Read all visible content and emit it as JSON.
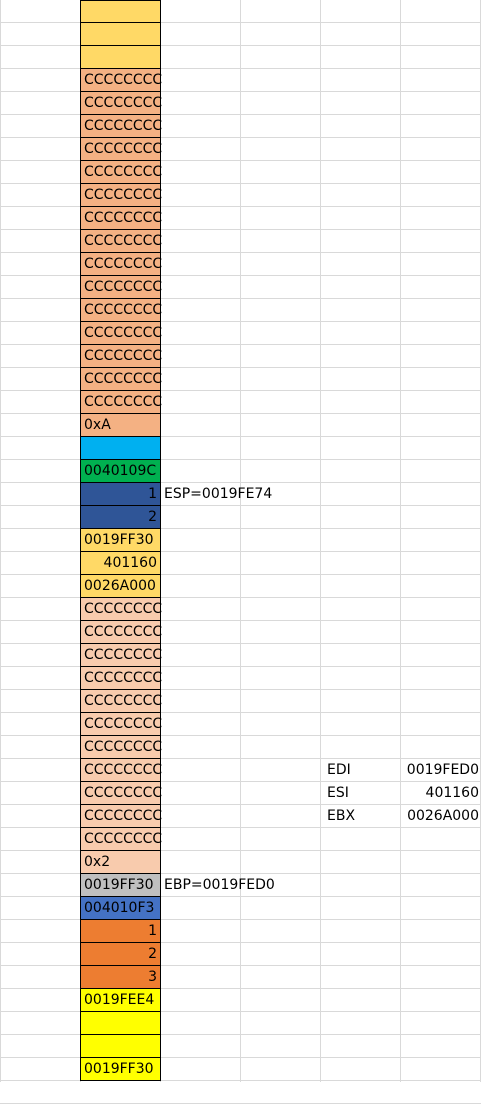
{
  "colors": {
    "gridline": "#d9d9d9",
    "light_yellow": "#ffd966",
    "salmon": "#f4b183",
    "light_peach": "#f8cbad",
    "sky_blue": "#00b0f0",
    "green": "#00b050",
    "navy_blue": "#2f5597",
    "mid_blue": "#4472c4",
    "orange": "#ed7d31",
    "gray": "#bfbfbf",
    "yellow": "#ffff00"
  },
  "stack_cells": [
    {
      "text": "",
      "color": "light_yellow",
      "align": "left"
    },
    {
      "text": "",
      "color": "light_yellow",
      "align": "left"
    },
    {
      "text": "",
      "color": "light_yellow",
      "align": "left"
    },
    {
      "text": "CCCCCCCC",
      "color": "salmon",
      "align": "left"
    },
    {
      "text": "CCCCCCCC",
      "color": "salmon",
      "align": "left"
    },
    {
      "text": "CCCCCCCC",
      "color": "salmon",
      "align": "left"
    },
    {
      "text": "CCCCCCCC",
      "color": "salmon",
      "align": "left"
    },
    {
      "text": "CCCCCCCC",
      "color": "salmon",
      "align": "left"
    },
    {
      "text": "CCCCCCCC",
      "color": "salmon",
      "align": "left"
    },
    {
      "text": "CCCCCCCC",
      "color": "salmon",
      "align": "left"
    },
    {
      "text": "CCCCCCCC",
      "color": "salmon",
      "align": "left"
    },
    {
      "text": "CCCCCCCC",
      "color": "salmon",
      "align": "left"
    },
    {
      "text": "CCCCCCCC",
      "color": "salmon",
      "align": "left"
    },
    {
      "text": "CCCCCCCC",
      "color": "salmon",
      "align": "left"
    },
    {
      "text": "CCCCCCCC",
      "color": "salmon",
      "align": "left"
    },
    {
      "text": "CCCCCCCC",
      "color": "salmon",
      "align": "left"
    },
    {
      "text": "CCCCCCCC",
      "color": "salmon",
      "align": "left"
    },
    {
      "text": "CCCCCCCC",
      "color": "salmon",
      "align": "left"
    },
    {
      "text": "0xA",
      "color": "salmon",
      "align": "left"
    },
    {
      "text": "",
      "color": "sky_blue",
      "align": "left"
    },
    {
      "text": "0040109C",
      "color": "green",
      "align": "left"
    },
    {
      "text": "1",
      "color": "navy_blue",
      "align": "right"
    },
    {
      "text": "2",
      "color": "navy_blue",
      "align": "right"
    },
    {
      "text": "0019FF30",
      "color": "light_yellow",
      "align": "left"
    },
    {
      "text": "401160",
      "color": "light_yellow",
      "align": "right"
    },
    {
      "text": "0026A000",
      "color": "light_yellow",
      "align": "left"
    },
    {
      "text": "CCCCCCCC",
      "color": "light_peach",
      "align": "left"
    },
    {
      "text": "CCCCCCCC",
      "color": "light_peach",
      "align": "left"
    },
    {
      "text": "CCCCCCCC",
      "color": "light_peach",
      "align": "left"
    },
    {
      "text": "CCCCCCCC",
      "color": "light_peach",
      "align": "left"
    },
    {
      "text": "CCCCCCCC",
      "color": "light_peach",
      "align": "left"
    },
    {
      "text": "CCCCCCCC",
      "color": "light_peach",
      "align": "left"
    },
    {
      "text": "CCCCCCCC",
      "color": "light_peach",
      "align": "left"
    },
    {
      "text": "CCCCCCCC",
      "color": "light_peach",
      "align": "left"
    },
    {
      "text": "CCCCCCCC",
      "color": "light_peach",
      "align": "left"
    },
    {
      "text": "CCCCCCCC",
      "color": "light_peach",
      "align": "left"
    },
    {
      "text": "CCCCCCCC",
      "color": "light_peach",
      "align": "left"
    },
    {
      "text": "0x2",
      "color": "light_peach",
      "align": "left"
    },
    {
      "text": "0019FF30",
      "color": "gray",
      "align": "left"
    },
    {
      "text": "004010F3",
      "color": "mid_blue",
      "align": "left"
    },
    {
      "text": "1",
      "color": "orange",
      "align": "right"
    },
    {
      "text": "2",
      "color": "orange",
      "align": "right"
    },
    {
      "text": "3",
      "color": "orange",
      "align": "right"
    },
    {
      "text": "0019FEE4",
      "color": "yellow",
      "align": "left"
    },
    {
      "text": "",
      "color": "yellow",
      "align": "left"
    },
    {
      "text": "",
      "color": "yellow",
      "align": "left"
    },
    {
      "text": "0019FF30",
      "color": "yellow",
      "align": "left"
    }
  ],
  "side_labels": [
    {
      "row": 21,
      "text": "ESP=0019FE74"
    },
    {
      "row": 38,
      "text": "EBP=0019FED0"
    }
  ],
  "registers": [
    {
      "row": 33,
      "name": "EDI",
      "value": "0019FED0"
    },
    {
      "row": 34,
      "name": "ESI",
      "value": "401160"
    },
    {
      "row": 35,
      "name": "EBX",
      "value": "0026A000"
    }
  ]
}
